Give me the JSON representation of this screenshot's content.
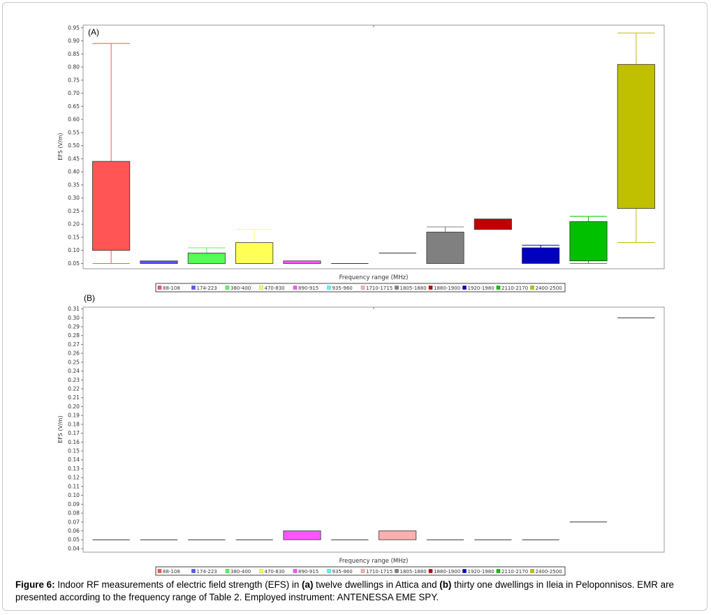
{
  "chart_data": [
    {
      "type": "box",
      "panel_label": "(A)",
      "ylabel": "EFS (V/m)",
      "xlabel": "Frequency range (MHz)",
      "ylim": [
        0.03,
        0.96
      ],
      "yticks": [
        0.05,
        0.1,
        0.15,
        0.2,
        0.25,
        0.3,
        0.35,
        0.4,
        0.45,
        0.5,
        0.55,
        0.6,
        0.65,
        0.7,
        0.75,
        0.8,
        0.85,
        0.9,
        0.95
      ],
      "legend_position": "bottom",
      "series": [
        {
          "name": "88-108",
          "color": "#ff5555",
          "q1": 0.1,
          "q3": 0.44,
          "whisker_low": 0.05,
          "whisker_high": 0.89
        },
        {
          "name": "174-223",
          "color": "#5555ff",
          "q1": 0.05,
          "q3": 0.06,
          "whisker_low": 0.05,
          "whisker_high": 0.06
        },
        {
          "name": "380-400",
          "color": "#55ff55",
          "q1": 0.05,
          "q3": 0.09,
          "whisker_low": 0.05,
          "whisker_high": 0.11
        },
        {
          "name": "470-830",
          "color": "#ffff55",
          "q1": 0.05,
          "q3": 0.13,
          "whisker_low": 0.05,
          "whisker_high": 0.18
        },
        {
          "name": "890-915",
          "color": "#ff55ff",
          "q1": 0.05,
          "q3": 0.06,
          "whisker_low": 0.05,
          "whisker_high": 0.06
        },
        {
          "name": "935-960",
          "color": "#55ffff",
          "q1": 0.05,
          "q3": 0.05,
          "whisker_low": 0.05,
          "whisker_high": 0.05
        },
        {
          "name": "1710-1715",
          "color": "#ffafaf",
          "q1": 0.09,
          "q3": 0.09,
          "whisker_low": 0.09,
          "whisker_high": 0.09
        },
        {
          "name": "1805-1880",
          "color": "#808080",
          "q1": 0.05,
          "q3": 0.17,
          "whisker_low": 0.05,
          "whisker_high": 0.19
        },
        {
          "name": "1880-1900",
          "color": "#c00000",
          "q1": 0.18,
          "q3": 0.22,
          "whisker_low": 0.18,
          "whisker_high": 0.22
        },
        {
          "name": "1920-1980",
          "color": "#0000c0",
          "q1": 0.05,
          "q3": 0.11,
          "whisker_low": 0.05,
          "whisker_high": 0.12
        },
        {
          "name": "2110-2170",
          "color": "#00c000",
          "q1": 0.06,
          "q3": 0.21,
          "whisker_low": 0.05,
          "whisker_high": 0.23
        },
        {
          "name": "2400-2500",
          "color": "#c0c000",
          "q1": 0.26,
          "q3": 0.81,
          "whisker_low": 0.13,
          "whisker_high": 0.93
        }
      ]
    },
    {
      "type": "box",
      "panel_label": "(B)",
      "ylabel": "EFS (V/m)",
      "xlabel": "Frequency range (MHz)",
      "ylim": [
        0.036,
        0.312
      ],
      "yticks": [
        0.04,
        0.05,
        0.06,
        0.07,
        0.08,
        0.09,
        0.1,
        0.11,
        0.12,
        0.13,
        0.14,
        0.15,
        0.16,
        0.17,
        0.18,
        0.19,
        0.2,
        0.21,
        0.22,
        0.23,
        0.24,
        0.25,
        0.26,
        0.27,
        0.28,
        0.29,
        0.3,
        0.31
      ],
      "legend_position": "bottom",
      "series": [
        {
          "name": "88-108",
          "color": "#ff5555",
          "q1": 0.05,
          "q3": 0.05,
          "whisker_low": 0.05,
          "whisker_high": 0.05
        },
        {
          "name": "174-223",
          "color": "#5555ff",
          "q1": 0.05,
          "q3": 0.05,
          "whisker_low": 0.05,
          "whisker_high": 0.05
        },
        {
          "name": "380-400",
          "color": "#55ff55",
          "q1": 0.05,
          "q3": 0.05,
          "whisker_low": 0.05,
          "whisker_high": 0.05
        },
        {
          "name": "470-830",
          "color": "#ffff55",
          "q1": 0.05,
          "q3": 0.05,
          "whisker_low": 0.05,
          "whisker_high": 0.05
        },
        {
          "name": "890-915",
          "color": "#ff55ff",
          "q1": 0.05,
          "q3": 0.06,
          "whisker_low": 0.05,
          "whisker_high": 0.06
        },
        {
          "name": "935-960",
          "color": "#55ffff",
          "q1": 0.05,
          "q3": 0.05,
          "whisker_low": 0.05,
          "whisker_high": 0.05
        },
        {
          "name": "1710-1715",
          "color": "#ffafaf",
          "q1": 0.05,
          "q3": 0.06,
          "whisker_low": 0.05,
          "whisker_high": 0.06
        },
        {
          "name": "1805-1880",
          "color": "#808080",
          "q1": 0.05,
          "q3": 0.05,
          "whisker_low": 0.05,
          "whisker_high": 0.05
        },
        {
          "name": "1880-1900",
          "color": "#c00000",
          "q1": 0.05,
          "q3": 0.05,
          "whisker_low": 0.05,
          "whisker_high": 0.05
        },
        {
          "name": "1920-1980",
          "color": "#0000c0",
          "q1": 0.05,
          "q3": 0.05,
          "whisker_low": 0.05,
          "whisker_high": 0.05
        },
        {
          "name": "2110-2170",
          "color": "#00c000",
          "q1": 0.07,
          "q3": 0.07,
          "whisker_low": 0.07,
          "whisker_high": 0.07
        },
        {
          "name": "2400-2500",
          "color": "#c0c000",
          "q1": 0.3,
          "q3": 0.3,
          "whisker_low": 0.3,
          "whisker_high": 0.3
        }
      ]
    }
  ],
  "caption": {
    "label": "Figure 6:",
    "text_1": " Indoor RF measurements of electric field strength (EFS) in ",
    "a_label": "(a)",
    "text_2": " twelve dwellings in Attica and ",
    "b_label": "(b)",
    "text_3": " thirty one dwellings in Ileia in Peloponnisos. EMR are presented according to the frequency range of Table 2. Employed instrument: ANTENESSA EME SPY."
  }
}
